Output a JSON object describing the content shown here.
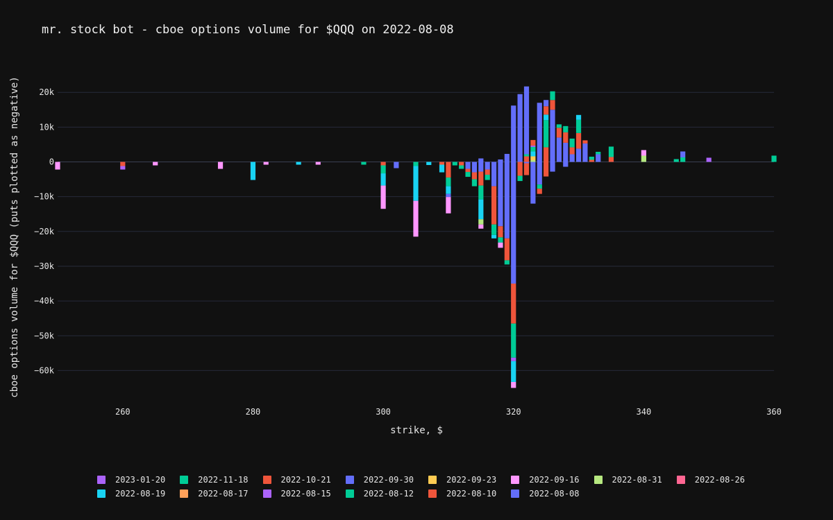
{
  "chart_data": {
    "type": "bar",
    "stacked": true,
    "title": "mr. stock bot - cboe options volume for $QQQ on 2022-08-08",
    "xlabel": "strike, $",
    "ylabel": "cboe options volume for $QQQ (puts plotted as negative)",
    "xlim": [
      250,
      360
    ],
    "ylim": [
      -69000,
      31000
    ],
    "x_ticks": [
      260,
      280,
      300,
      320,
      340,
      360
    ],
    "y_ticks": [
      20000,
      10000,
      0,
      -10000,
      -20000,
      -30000,
      -40000,
      -50000,
      -60000
    ],
    "y_tick_labels": [
      "20k",
      "10k",
      "0",
      "−10k",
      "−20k",
      "−30k",
      "−40k",
      "−50k",
      "−60k"
    ],
    "grid": true,
    "legend_position": "bottom",
    "series": [
      {
        "name": "2023-01-20",
        "color": "#ab63fa"
      },
      {
        "name": "2022-11-18",
        "color": "#00cc96"
      },
      {
        "name": "2022-10-21",
        "color": "#ef553b"
      },
      {
        "name": "2022-09-30",
        "color": "#636efa"
      },
      {
        "name": "2022-09-23",
        "color": "#fecb52"
      },
      {
        "name": "2022-09-16",
        "color": "#ff97ff"
      },
      {
        "name": "2022-08-31",
        "color": "#b6e880"
      },
      {
        "name": "2022-08-26",
        "color": "#ff6692"
      },
      {
        "name": "2022-08-19",
        "color": "#19d3f3"
      },
      {
        "name": "2022-08-17",
        "color": "#ffa15a"
      },
      {
        "name": "2022-08-15",
        "color": "#ab63fa"
      },
      {
        "name": "2022-08-12",
        "color": "#00cc96"
      },
      {
        "name": "2022-08-10",
        "color": "#ef553b"
      },
      {
        "name": "2022-08-08",
        "color": "#636efa"
      }
    ],
    "stacks": [
      {
        "x": 250,
        "calls": [],
        "puts": [
          [
            "2022-09-16",
            2200
          ]
        ]
      },
      {
        "x": 260,
        "calls": [],
        "puts": [
          [
            "2022-10-21",
            1200
          ],
          [
            "2023-01-20",
            1000
          ]
        ]
      },
      {
        "x": 265,
        "calls": [],
        "puts": [
          [
            "2022-09-16",
            1000
          ]
        ]
      },
      {
        "x": 275,
        "calls": [],
        "puts": [
          [
            "2022-09-16",
            2000
          ]
        ]
      },
      {
        "x": 280,
        "calls": [],
        "puts": [
          [
            "2022-08-19",
            5200
          ]
        ]
      },
      {
        "x": 282,
        "calls": [],
        "puts": [
          [
            "2022-09-16",
            800
          ]
        ]
      },
      {
        "x": 287,
        "calls": [],
        "puts": [
          [
            "2022-08-19",
            800
          ]
        ]
      },
      {
        "x": 290,
        "calls": [],
        "puts": [
          [
            "2022-09-16",
            800
          ]
        ]
      },
      {
        "x": 297,
        "calls": [],
        "puts": [
          [
            "2022-11-18",
            800
          ]
        ]
      },
      {
        "x": 300,
        "calls": [],
        "puts": [
          [
            "2022-10-21",
            1000
          ],
          [
            "2022-11-18",
            2300
          ],
          [
            "2022-08-19",
            3500
          ],
          [
            "2022-09-16",
            6700
          ]
        ]
      },
      {
        "x": 302,
        "calls": [],
        "puts": [
          [
            "2022-09-30",
            1800
          ]
        ]
      },
      {
        "x": 305,
        "calls": [],
        "puts": [
          [
            "2022-11-18",
            1200
          ],
          [
            "2022-08-19",
            10000
          ],
          [
            "2022-09-16",
            10300
          ]
        ]
      },
      {
        "x": 307,
        "calls": [],
        "puts": [
          [
            "2022-08-19",
            900
          ]
        ]
      },
      {
        "x": 309,
        "calls": [],
        "puts": [
          [
            "2022-10-21",
            800
          ],
          [
            "2022-08-19",
            2200
          ]
        ]
      },
      {
        "x": 310,
        "calls": [],
        "puts": [
          [
            "2022-10-21",
            4500
          ],
          [
            "2022-11-18",
            2500
          ],
          [
            "2022-08-19",
            2200
          ],
          [
            "2022-09-30",
            900
          ],
          [
            "2022-09-16",
            4700
          ]
        ]
      },
      {
        "x": 311,
        "calls": [],
        "puts": [
          [
            "2022-11-18",
            1000
          ]
        ]
      },
      {
        "x": 312,
        "calls": [],
        "puts": [
          [
            "2022-10-21",
            1000
          ],
          [
            "2022-11-18",
            1000
          ]
        ]
      },
      {
        "x": 313,
        "calls": [],
        "puts": [
          [
            "2022-09-30",
            2000
          ],
          [
            "2022-10-21",
            900
          ],
          [
            "2022-11-18",
            1400
          ]
        ]
      },
      {
        "x": 314,
        "calls": [],
        "puts": [
          [
            "2022-09-30",
            3000
          ],
          [
            "2022-10-21",
            2000
          ],
          [
            "2022-11-18",
            2000
          ]
        ]
      },
      {
        "x": 315,
        "calls": [
          [
            "2022-08-08",
            1000
          ]
        ],
        "puts": [
          [
            "2022-09-30",
            2800
          ],
          [
            "2022-10-21",
            4000
          ],
          [
            "2022-11-18",
            4000
          ],
          [
            "2022-08-19",
            5700
          ],
          [
            "2022-08-31",
            1500
          ],
          [
            "2022-09-16",
            1200
          ]
        ]
      },
      {
        "x": 316,
        "calls": [],
        "puts": [
          [
            "2022-09-30",
            2200
          ],
          [
            "2022-10-21",
            1500
          ],
          [
            "2022-11-18",
            1500
          ]
        ]
      },
      {
        "x": 317,
        "calls": [],
        "puts": [
          [
            "2022-09-30",
            7000
          ],
          [
            "2022-10-21",
            11000
          ],
          [
            "2022-11-18",
            3000
          ],
          [
            "2022-08-19",
            1000
          ]
        ]
      },
      {
        "x": 318,
        "calls": [
          [
            "2022-08-08",
            700
          ]
        ],
        "puts": [
          [
            "2022-08-08",
            18500
          ],
          [
            "2022-10-21",
            3200
          ],
          [
            "2022-11-18",
            1500
          ],
          [
            "2022-09-16",
            1500
          ]
        ]
      },
      {
        "x": 319,
        "calls": [
          [
            "2022-08-08",
            2300
          ]
        ],
        "puts": [
          [
            "2022-08-08",
            22000
          ],
          [
            "2022-10-21",
            6300
          ],
          [
            "2022-11-18",
            1200
          ]
        ]
      },
      {
        "x": 320,
        "calls": [
          [
            "2022-08-08",
            16200
          ]
        ],
        "puts": [
          [
            "2022-08-08",
            35000
          ],
          [
            "2022-08-10",
            11500
          ],
          [
            "2022-08-12",
            9800
          ],
          [
            "2022-08-15",
            1000
          ],
          [
            "2022-08-19",
            6000
          ],
          [
            "2022-09-16",
            1700
          ]
        ]
      },
      {
        "x": 321,
        "calls": [
          [
            "2022-08-08",
            19500
          ]
        ],
        "puts": [
          [
            "2022-10-21",
            4000
          ],
          [
            "2022-11-18",
            1500
          ]
        ]
      },
      {
        "x": 322,
        "calls": [
          [
            "2022-08-10",
            1600
          ],
          [
            "2022-08-12",
            600
          ],
          [
            "2022-08-08",
            19500
          ]
        ],
        "puts": [
          [
            "2022-09-30",
            400
          ],
          [
            "2022-10-21",
            3400
          ]
        ]
      },
      {
        "x": 323,
        "calls": [
          [
            "2022-08-31",
            500
          ],
          [
            "2022-09-23",
            1100
          ],
          [
            "2022-08-19",
            1400
          ],
          [
            "2022-08-12",
            1300
          ],
          [
            "2022-08-15",
            400
          ],
          [
            "2022-08-10",
            1600
          ]
        ],
        "puts": [
          [
            "2022-08-08",
            12000
          ]
        ]
      },
      {
        "x": 324,
        "calls": [
          [
            "2022-08-08",
            17000
          ]
        ],
        "puts": [
          [
            "2022-08-08",
            6500
          ],
          [
            "2022-08-12",
            1200
          ],
          [
            "2022-08-10",
            1500
          ]
        ]
      },
      {
        "x": 325,
        "calls": [
          [
            "2022-08-10",
            4200
          ],
          [
            "2022-08-12",
            7800
          ],
          [
            "2022-08-19",
            1600
          ],
          [
            "2022-08-10",
            2400
          ],
          [
            "2022-08-08",
            1800
          ]
        ],
        "puts": [
          [
            "2022-10-21",
            4200
          ]
        ]
      },
      {
        "x": 326,
        "calls": [
          [
            "2022-08-08",
            15000
          ],
          [
            "2022-08-10",
            2800
          ],
          [
            "2022-08-12",
            2500
          ]
        ],
        "puts": [
          [
            "2022-08-08",
            2800
          ]
        ]
      },
      {
        "x": 327,
        "calls": [
          [
            "2022-08-08",
            7000
          ],
          [
            "2022-08-10",
            2800
          ],
          [
            "2022-08-12",
            1000
          ]
        ],
        "puts": []
      },
      {
        "x": 328,
        "calls": [
          [
            "2022-08-08",
            5500
          ],
          [
            "2022-08-10",
            3000
          ],
          [
            "2022-08-12",
            1800
          ]
        ],
        "puts": [
          [
            "2022-08-08",
            1400
          ]
        ]
      },
      {
        "x": 329,
        "calls": [
          [
            "2022-08-08",
            2200
          ],
          [
            "2022-08-10",
            2000
          ],
          [
            "2022-08-12",
            2500
          ]
        ],
        "puts": []
      },
      {
        "x": 330,
        "calls": [
          [
            "2022-08-08",
            3800
          ],
          [
            "2022-08-10",
            4500
          ],
          [
            "2022-08-12",
            3800
          ],
          [
            "2022-08-19",
            1400
          ]
        ],
        "puts": []
      },
      {
        "x": 331,
        "calls": [
          [
            "2022-08-08",
            5300
          ],
          [
            "2022-08-10",
            900
          ]
        ],
        "puts": []
      },
      {
        "x": 332,
        "calls": [
          [
            "2022-10-21",
            600
          ],
          [
            "2022-11-18",
            900
          ]
        ],
        "puts": []
      },
      {
        "x": 333,
        "calls": [
          [
            "2022-09-30",
            2200
          ],
          [
            "2022-11-18",
            700
          ]
        ],
        "puts": []
      },
      {
        "x": 335,
        "calls": [
          [
            "2022-10-21",
            1400
          ],
          [
            "2022-11-18",
            3000
          ]
        ],
        "puts": []
      },
      {
        "x": 340,
        "calls": [
          [
            "2022-08-31",
            1800
          ],
          [
            "2022-09-16",
            1600
          ]
        ],
        "puts": []
      },
      {
        "x": 345,
        "calls": [
          [
            "2022-11-18",
            800
          ]
        ],
        "puts": []
      },
      {
        "x": 346,
        "calls": [
          [
            "2022-11-18",
            1300
          ],
          [
            "2022-09-30",
            1700
          ]
        ],
        "puts": []
      },
      {
        "x": 350,
        "calls": [
          [
            "2022-08-15",
            1200
          ]
        ],
        "puts": []
      },
      {
        "x": 360,
        "calls": [
          [
            "2022-11-18",
            1800
          ]
        ],
        "puts": []
      }
    ]
  }
}
